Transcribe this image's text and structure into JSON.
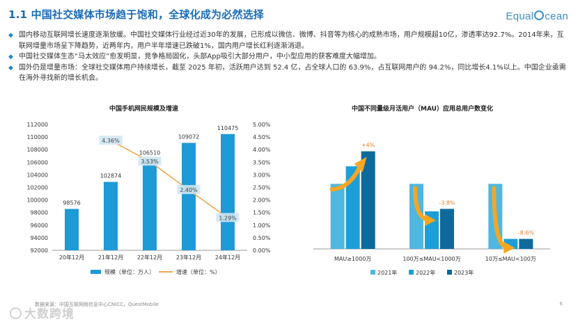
{
  "header": {
    "title": "1.1 中国社交媒体市场趋于饱和，全球化成为必然选择",
    "logo_left": "Equal",
    "logo_right": "cean"
  },
  "bullets": [
    "国内移动互联网增长速度逐渐放缓。中国社交媒体行业经过近30年的发展，已形成以微信、微博、抖音等为核心的成熟市场，用户规模超10亿，渗透率达92.7%。2014年来，互联网增量市场呈下降趋势，近两年内，用户半年增速已跌破1%，国内用户增长红利逐渐消退。",
    "中国社交媒体生态“马太效应”愈发明显，竞争格局固化，头部App吸引大部分用户，中小型应用的获客难度大幅增加。",
    "国外仍是增量市场：全球社交媒体用户持续增长，截至 2025 年初，活跃用户达到 52.4 亿，占全球人口的 63.9%，占互联网用户的 94.2%，同比增长4.1%以上。中国企业亟需在海外寻找新的增长机会。"
  ],
  "footer": {
    "source": "数据来源：中国互联网络信息中心CNICC，QuestMobile",
    "page": "6",
    "watermark": "大数跨境"
  },
  "colors": {
    "title_blue": "#1a6bb8",
    "bar_blue": "#1e9ad6",
    "line_orange": "#f0a64c",
    "label_bg": "#cfe7f3",
    "s2021": "#4fb7e0",
    "s2022": "#1c9fd8",
    "s2023": "#0e6a9b",
    "arrow": "#f5a623",
    "pct_orange": "#e8792a"
  },
  "chart_data": [
    {
      "type": "bar",
      "title": "中国手机网民规模及增速",
      "categories": [
        "20年12月",
        "21年12月",
        "22年12月",
        "23年12月",
        "24年12月"
      ],
      "series": [
        {
          "name": "规模（单位：万人）",
          "values": [
            98576,
            102874,
            106510,
            109072,
            110475
          ],
          "labels": [
            "98576",
            "102874",
            "106510",
            "109072",
            "110475"
          ]
        },
        {
          "name": "增速（单位：%）",
          "type": "line",
          "axis": "right",
          "values": [
            null,
            4.36,
            3.53,
            2.4,
            1.29
          ],
          "labels": [
            "",
            "4.36%",
            "3.53%",
            "2.40%",
            "1.29%"
          ]
        }
      ],
      "ylim": [
        92000,
        112000
      ],
      "yticks": [
        "92000",
        "94000",
        "96000",
        "98000",
        "100000",
        "102000",
        "104000",
        "106000",
        "108000",
        "110000",
        "112000"
      ],
      "y2lim": [
        0,
        5
      ],
      "y2ticks": [
        "0.00%",
        "0.50%",
        "1.00%",
        "1.50%",
        "2.00%",
        "2.50%",
        "3.00%",
        "3.50%",
        "4.00%",
        "4.50%",
        "5.00%"
      ],
      "legend": "bottom"
    },
    {
      "type": "bar",
      "title": "中国不同量级月活用户（MAU）应用总用户数变化",
      "categories": [
        "MAU≥1000万",
        "100万≤MAU<1000万",
        "10万≤MAU<100万"
      ],
      "series": [
        {
          "name": "2021年",
          "values": [
            0.52,
            0.52,
            0.52
          ]
        },
        {
          "name": "2022年",
          "values": [
            0.66,
            0.3,
            0.08
          ]
        },
        {
          "name": "2023年",
          "values": [
            0.78,
            0.32,
            0.08
          ]
        }
      ],
      "annotations": [
        "+4%",
        "-3.8%",
        "-8.6%"
      ],
      "ylim": [
        0,
        1
      ],
      "legend": "bottom"
    }
  ]
}
